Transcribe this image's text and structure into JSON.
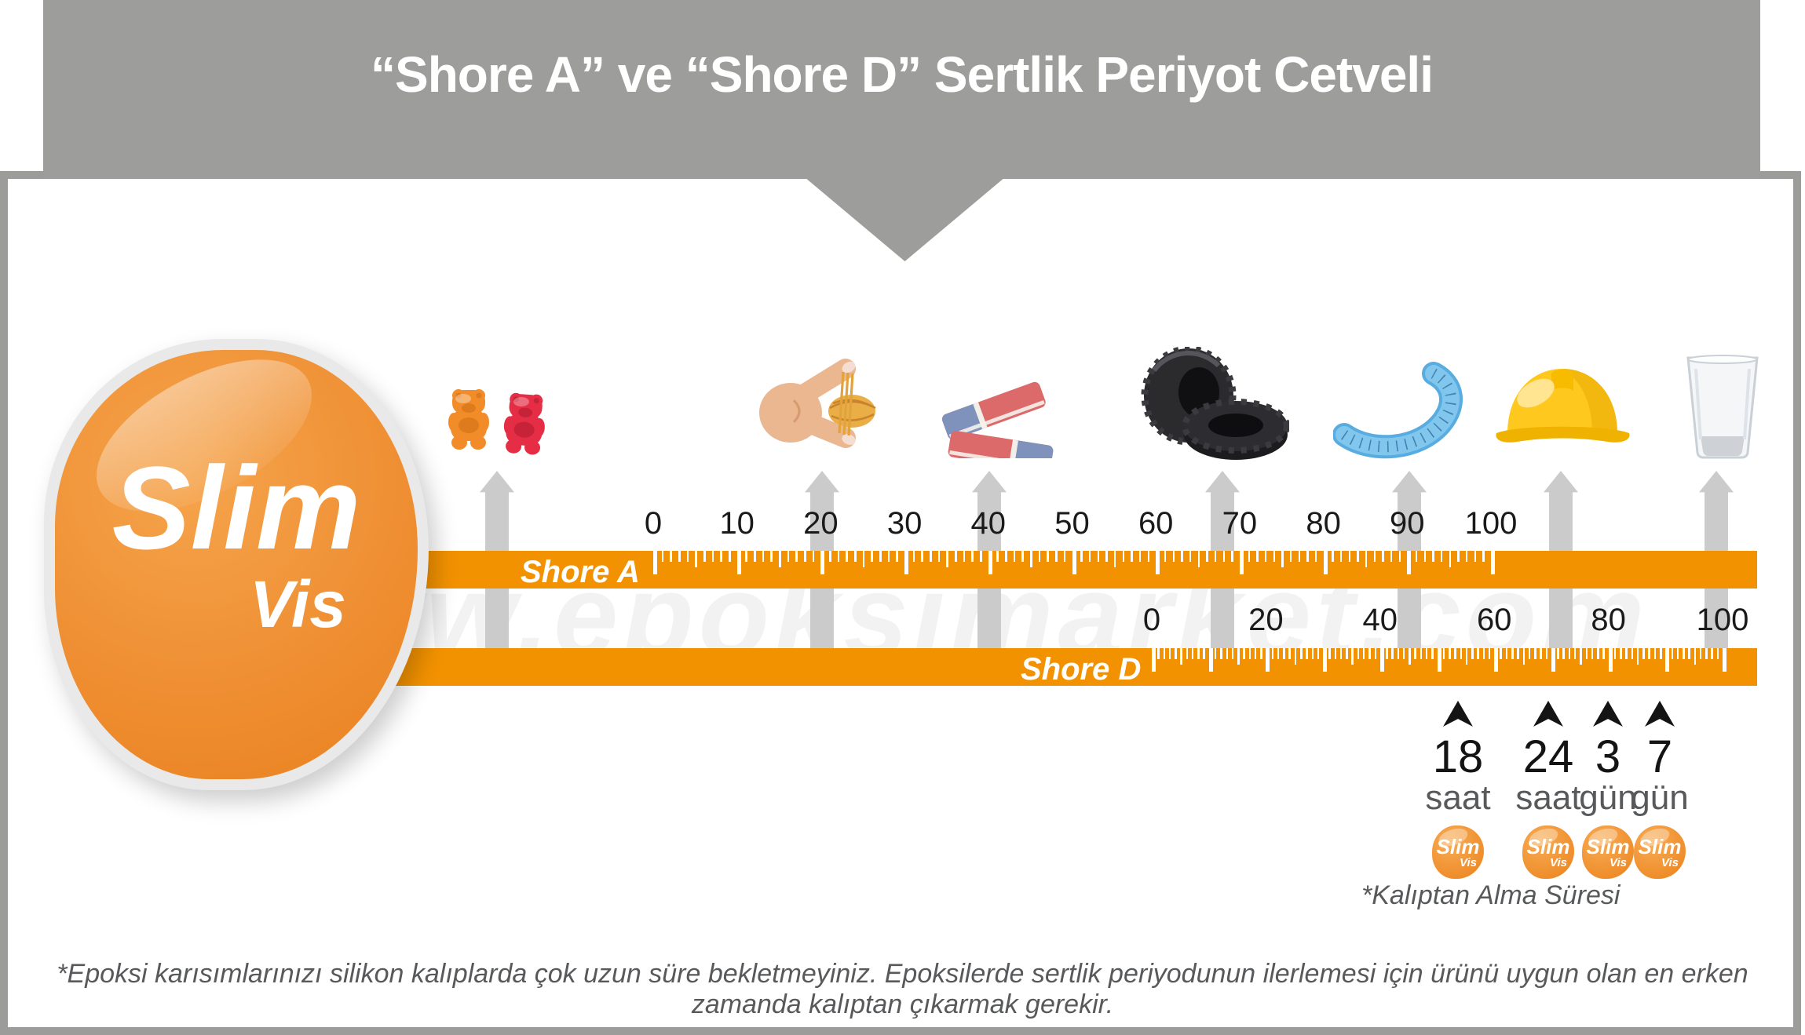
{
  "header": {
    "title": "“Shore A” ve “Shore D” Sertlik Periyot Cetveli"
  },
  "logo": {
    "line1": "Slim",
    "line2": "Vis"
  },
  "watermark": "www.epoksimarket.com",
  "scales": {
    "shore_a": {
      "label": "Shore A",
      "min": 0,
      "max": 100,
      "major_step": 10,
      "tick_labels": [
        0,
        10,
        20,
        30,
        40,
        50,
        60,
        70,
        80,
        90,
        100
      ]
    },
    "shore_d": {
      "label": "Shore D",
      "min": 0,
      "max": 100,
      "major_step": 10,
      "tick_labels": [
        0,
        20,
        40,
        60,
        80,
        100
      ]
    }
  },
  "items": [
    {
      "icon": "gummy-bears-icon",
      "label": "gummy bears"
    },
    {
      "icon": "rubber-band-icon",
      "label": "rubber band stretched by hand"
    },
    {
      "icon": "erasers-icon",
      "label": "pencil erasers"
    },
    {
      "icon": "tires-icon",
      "label": "car tires"
    },
    {
      "icon": "flexible-ruler-icon",
      "label": "flexible ruler"
    },
    {
      "icon": "hard-hat-icon",
      "label": "hard hat"
    },
    {
      "icon": "glass-icon",
      "label": "drinking glass"
    }
  ],
  "scale_markers": [
    {
      "item": "gummy bears",
      "scale": "shore_a",
      "approx_value": 0
    },
    {
      "item": "rubber band",
      "scale": "shore_a",
      "approx_value": 20
    },
    {
      "item": "erasers",
      "scale": "shore_a",
      "approx_value": 40
    },
    {
      "item": "tires",
      "scale": "shore_a",
      "approx_value": 68
    },
    {
      "item": "flexible ruler",
      "scale": "shore_a",
      "approx_value": 90
    },
    {
      "item": "hard hat",
      "scale": "shore_d",
      "approx_value": 72
    },
    {
      "item": "glass",
      "scale": "shore_d",
      "approx_value": 99
    }
  ],
  "cure_times": [
    {
      "value": "18",
      "unit": "saat",
      "shore_d_approx": 53
    },
    {
      "value": "24",
      "unit": "saat",
      "shore_d_approx": 69
    },
    {
      "value": "3",
      "unit": "gün",
      "shore_d_approx": 80
    },
    {
      "value": "7",
      "unit": "gün",
      "shore_d_approx": 89
    }
  ],
  "badge": {
    "line1": "Slim",
    "line2": "Vis"
  },
  "footnote": "*Kalıptan Alma Süresi",
  "disclaimer": "*Epoksi karısımlarınızı silikon kalıplarda çok uzun süre bekletmeyiniz. Epoksilerde sertlik periyodunun ilerlemesi için ürünü uygun olan en erken zamanda kalıptan çıkarmak gerekir.",
  "colors": {
    "banner_gray": "#9D9D9B",
    "bar_orange": "#F39200",
    "marker_gray": "#CBCBCB",
    "logo_orange": "#EF8F33",
    "text_dark": "#1A1A1A",
    "text_gray": "#58595B",
    "watermark_gray": "#F2F2F2"
  }
}
